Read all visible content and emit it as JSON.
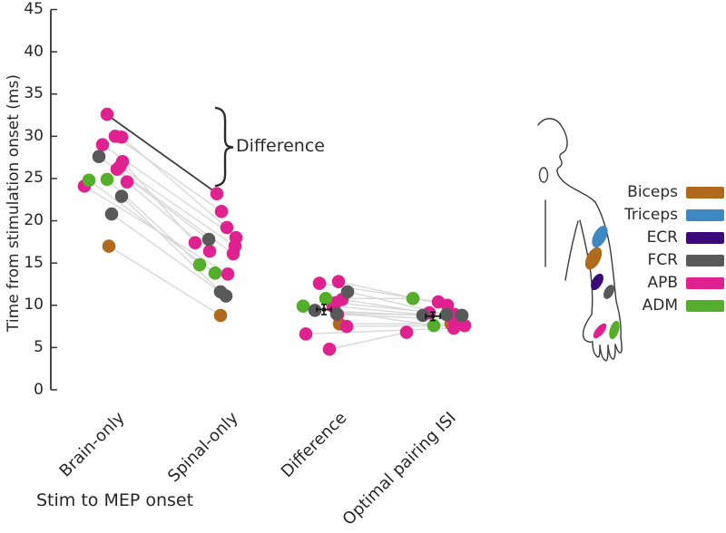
{
  "chart_data": {
    "type": "scatter",
    "title": "",
    "ylabel": "Time from stimulation onset (ms)",
    "xlabel": "Stim to MEP onset",
    "ylim": [
      0,
      45
    ],
    "yticks": [
      0,
      5,
      10,
      15,
      20,
      25,
      30,
      35,
      40,
      45
    ],
    "grid": false,
    "categories": [
      "Brain-only",
      "Spinal-only",
      "Difference",
      "Optimal pairing ISI"
    ],
    "annotation": "Difference",
    "legend_position": "right",
    "legend": {
      "items": [
        {
          "id": "biceps",
          "label": "Biceps",
          "color": "#b06a1e"
        },
        {
          "id": "triceps",
          "label": "Triceps",
          "color": "#3d87c2"
        },
        {
          "id": "ecr",
          "label": "ECR",
          "color": "#3a0a78"
        },
        {
          "id": "fcr",
          "label": "FCR",
          "color": "#595959"
        },
        {
          "id": "apb",
          "label": "APB",
          "color": "#df2290"
        },
        {
          "id": "adm",
          "label": "ADM",
          "color": "#54ae2b"
        }
      ]
    },
    "series": [
      {
        "name": "Biceps",
        "color": "#b06a1e",
        "subjects": [
          {
            "values": [
              17.0,
              8.8,
              7.8,
              7.8
            ],
            "dx": [
              5,
              3,
              14,
              17
            ],
            "highlight": false
          }
        ]
      },
      {
        "name": "APB",
        "color": "#df2290",
        "subjects": [
          {
            "values": [
              32.6,
              23.2,
              12.6,
              10.4
            ],
            "dx": [
              3,
              -1,
              -8,
              3
            ],
            "highlight": true
          },
          {
            "values": [
              30.0,
              21.1,
              12.8,
              10.0
            ],
            "dx": [
              12,
              4,
              13,
              13
            ],
            "highlight": false
          },
          {
            "values": [
              29.9,
              19.2,
              10.7,
              9.1
            ],
            "dx": [
              19,
              10,
              17,
              -7
            ],
            "highlight": false
          },
          {
            "values": [
              29.0,
              18.0,
              10.3,
              8.9
            ],
            "dx": [
              -2,
              20,
              10,
              21
            ],
            "highlight": false
          },
          {
            "values": [
              27.0,
              17.4,
              9.9,
              8.6
            ],
            "dx": [
              20,
              -25,
              7,
              17
            ],
            "highlight": false
          },
          {
            "values": [
              26.4,
              17.0,
              8.9,
              8.3
            ],
            "dx": [
              17,
              19,
              12,
              27
            ],
            "highlight": false
          },
          {
            "values": [
              26.1,
              16.1,
              7.5,
              7.6
            ],
            "dx": [
              14,
              17,
              22,
              32
            ],
            "highlight": false
          },
          {
            "values": [
              24.6,
              16.4,
              6.6,
              7.3
            ],
            "dx": [
              25,
              -9,
              -23,
              20
            ],
            "highlight": false
          },
          {
            "values": [
              24.1,
              13.7,
              4.8,
              6.8
            ],
            "dx": [
              -22,
              11,
              3,
              -32
            ],
            "highlight": false
          }
        ]
      },
      {
        "name": "ADM",
        "color": "#54ae2b",
        "subjects": [
          {
            "values": [
              24.9,
              14.8,
              10.8,
              10.8
            ],
            "dx": [
              3,
              -20,
              -1,
              -25
            ],
            "highlight": false
          },
          {
            "values": [
              24.8,
              13.8,
              9.9,
              7.6
            ],
            "dx": [
              -17,
              -3,
              -26,
              -2
            ],
            "highlight": false
          }
        ]
      },
      {
        "name": "FCR",
        "color": "#595959",
        "subjects": [
          {
            "values": [
              27.6,
              17.8,
              11.6,
              8.9
            ],
            "dx": [
              -6,
              -10,
              23,
              12
            ],
            "highlight": false
          },
          {
            "values": [
              22.9,
              11.6,
              9.4,
              8.8
            ],
            "dx": [
              19,
              3,
              -13,
              -14
            ],
            "highlight": false
          },
          {
            "values": [
              20.8,
              11.1,
              9.0,
              8.8
            ],
            "dx": [
              8,
              9,
              11,
              29
            ],
            "highlight": false
          }
        ]
      }
    ],
    "means": [
      {
        "category": "Difference",
        "value": 9.5,
        "sem": 0.6,
        "dx": -3
      },
      {
        "category": "Optimal pairing ISI",
        "value": 8.7,
        "sem": 0.5,
        "dx": -3
      }
    ]
  }
}
